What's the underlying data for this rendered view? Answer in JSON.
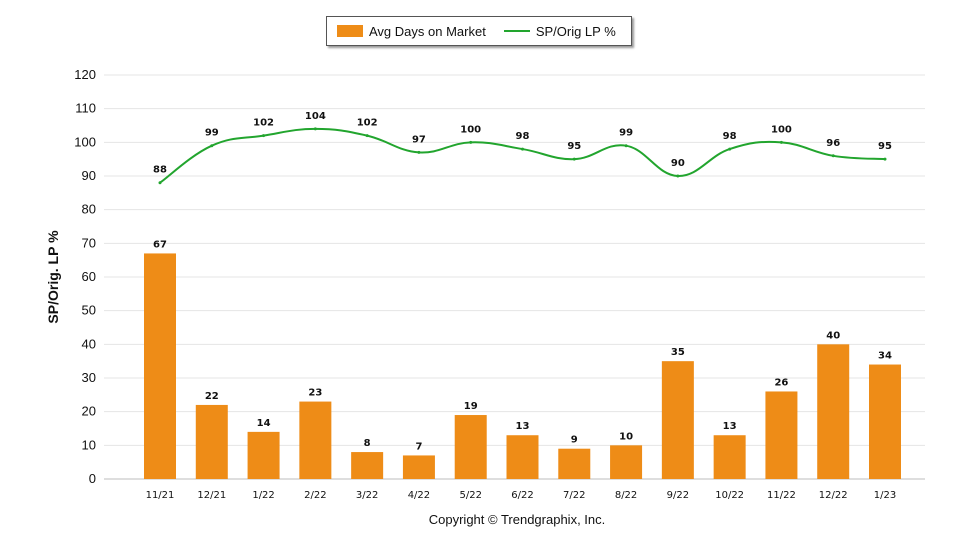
{
  "chart_data": {
    "type": "bar",
    "categories": [
      "11/21",
      "12/21",
      "1/22",
      "2/22",
      "3/22",
      "4/22",
      "5/22",
      "6/22",
      "7/22",
      "8/22",
      "9/22",
      "10/22",
      "11/22",
      "12/22",
      "1/23"
    ],
    "series": [
      {
        "name": "Avg Days on Market",
        "kind": "bar",
        "color": "#ee8c17",
        "values": [
          67,
          22,
          14,
          23,
          8,
          7,
          19,
          13,
          9,
          10,
          35,
          13,
          26,
          40,
          34
        ]
      },
      {
        "name": "SP/Orig LP %",
        "kind": "line",
        "color": "#22a52e",
        "values": [
          88,
          99,
          102,
          104,
          102,
          97,
          100,
          98,
          95,
          99,
          90,
          98,
          100,
          96,
          95
        ]
      }
    ],
    "ylabel": "SP/Orig. LP %",
    "xlabel": "",
    "ylim": [
      0,
      120
    ],
    "yticks": [
      0,
      10,
      20,
      30,
      40,
      50,
      60,
      70,
      80,
      90,
      100,
      110,
      120
    ],
    "grid": true,
    "legend_position": "top-center"
  },
  "footer": {
    "copyright": "Copyright © Trendgraphix, Inc."
  }
}
